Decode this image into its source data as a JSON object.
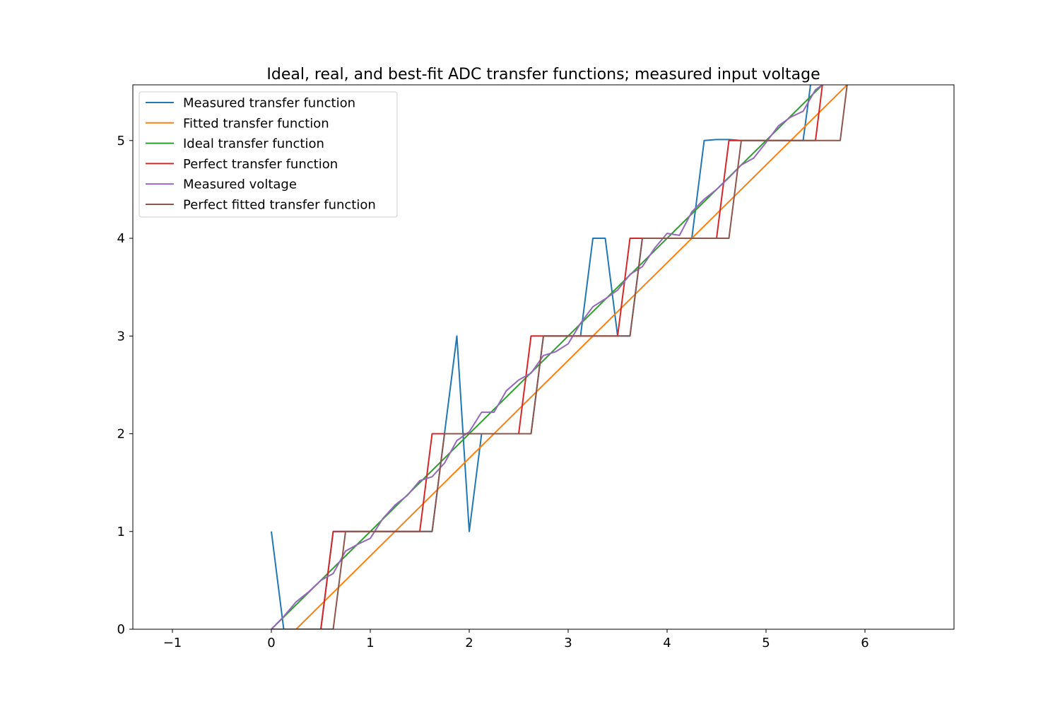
{
  "chart_data": {
    "type": "line",
    "title": "Ideal, real, and best-fit ADC transfer functions; measured input voltage",
    "xlabel": "",
    "ylabel": "",
    "xlim": [
      -1.4,
      6.9
    ],
    "ylim": [
      0,
      5.57
    ],
    "xticks": [
      -1,
      0,
      1,
      2,
      3,
      4,
      5,
      6
    ],
    "xtick_labels": [
      "−1",
      "0",
      "1",
      "2",
      "3",
      "4",
      "5",
      "6"
    ],
    "yticks": [
      0,
      1,
      2,
      3,
      4,
      5
    ],
    "ytick_labels": [
      "0",
      "1",
      "2",
      "3",
      "4",
      "5"
    ],
    "grid": false,
    "legend_position": "top-left",
    "series": [
      {
        "name": "Measured transfer function",
        "color": "#1f77b4",
        "points": [
          [
            0,
            1
          ],
          [
            0.125,
            0
          ],
          [
            0.25,
            0
          ],
          [
            0.5,
            0
          ],
          [
            0.625,
            1
          ],
          [
            0.75,
            1
          ],
          [
            1.0,
            1
          ],
          [
            1.5,
            1
          ],
          [
            1.625,
            1
          ],
          [
            1.75,
            2
          ],
          [
            1.875,
            3
          ],
          [
            2.0,
            1
          ],
          [
            2.125,
            2
          ],
          [
            2.25,
            2
          ],
          [
            2.5,
            2
          ],
          [
            2.625,
            2
          ],
          [
            2.75,
            3
          ],
          [
            3.0,
            3
          ],
          [
            3.125,
            3
          ],
          [
            3.25,
            4
          ],
          [
            3.375,
            4
          ],
          [
            3.5,
            3
          ],
          [
            3.625,
            3
          ],
          [
            3.75,
            4
          ],
          [
            4.0,
            4
          ],
          [
            4.125,
            4
          ],
          [
            4.25,
            4
          ],
          [
            4.375,
            5
          ],
          [
            4.5,
            5.01
          ],
          [
            4.625,
            5.01
          ],
          [
            4.75,
            5
          ],
          [
            5.0,
            5
          ],
          [
            5.25,
            5
          ],
          [
            5.375,
            5
          ],
          [
            5.45,
            5.57
          ]
        ]
      },
      {
        "name": "Fitted transfer function",
        "color": "#ff7f0e",
        "points": [
          [
            0.25,
            0
          ],
          [
            5.82,
            5.57
          ]
        ]
      },
      {
        "name": "Ideal transfer function",
        "color": "#2ca02c",
        "points": [
          [
            0,
            0
          ],
          [
            5.57,
            5.57
          ]
        ]
      },
      {
        "name": "Perfect transfer function",
        "color": "#d62728",
        "points": [
          [
            0,
            0
          ],
          [
            0.5,
            0
          ],
          [
            0.625,
            1
          ],
          [
            1.5,
            1
          ],
          [
            1.625,
            2
          ],
          [
            2.5,
            2
          ],
          [
            2.625,
            3
          ],
          [
            3.5,
            3
          ],
          [
            3.625,
            4
          ],
          [
            4.5,
            4
          ],
          [
            4.625,
            5
          ],
          [
            5.5,
            5
          ],
          [
            5.57,
            5.57
          ]
        ]
      },
      {
        "name": "Measured voltage",
        "color": "#9467bd",
        "points": [
          [
            0,
            0
          ],
          [
            0.125,
            0.13
          ],
          [
            0.25,
            0.28
          ],
          [
            0.375,
            0.38
          ],
          [
            0.5,
            0.5
          ],
          [
            0.625,
            0.57
          ],
          [
            0.75,
            0.8
          ],
          [
            0.875,
            0.87
          ],
          [
            1.0,
            0.93
          ],
          [
            1.125,
            1.13
          ],
          [
            1.25,
            1.27
          ],
          [
            1.375,
            1.37
          ],
          [
            1.5,
            1.52
          ],
          [
            1.625,
            1.56
          ],
          [
            1.75,
            1.7
          ],
          [
            1.875,
            1.93
          ],
          [
            2.0,
            2.02
          ],
          [
            2.125,
            2.22
          ],
          [
            2.25,
            2.22
          ],
          [
            2.375,
            2.44
          ],
          [
            2.5,
            2.55
          ],
          [
            2.625,
            2.62
          ],
          [
            2.75,
            2.8
          ],
          [
            2.875,
            2.84
          ],
          [
            3.0,
            2.92
          ],
          [
            3.125,
            3.13
          ],
          [
            3.25,
            3.3
          ],
          [
            3.375,
            3.38
          ],
          [
            3.5,
            3.47
          ],
          [
            3.625,
            3.63
          ],
          [
            3.75,
            3.71
          ],
          [
            3.875,
            3.9
          ],
          [
            4.0,
            4.05
          ],
          [
            4.125,
            4.03
          ],
          [
            4.25,
            4.27
          ],
          [
            4.375,
            4.4
          ],
          [
            4.5,
            4.5
          ],
          [
            4.625,
            4.62
          ],
          [
            4.75,
            4.75
          ],
          [
            4.875,
            4.82
          ],
          [
            5.0,
            4.98
          ],
          [
            5.125,
            5.15
          ],
          [
            5.25,
            5.24
          ],
          [
            5.375,
            5.3
          ],
          [
            5.5,
            5.52
          ],
          [
            5.57,
            5.57
          ]
        ]
      },
      {
        "name": "Perfect fitted transfer function",
        "color": "#8c564b",
        "points": [
          [
            0,
            0
          ],
          [
            0.625,
            0
          ],
          [
            0.75,
            1
          ],
          [
            1.625,
            1
          ],
          [
            1.75,
            2
          ],
          [
            2.625,
            2
          ],
          [
            2.75,
            3
          ],
          [
            3.625,
            3
          ],
          [
            3.75,
            4
          ],
          [
            4.625,
            4
          ],
          [
            4.75,
            5
          ],
          [
            5.75,
            5
          ],
          [
            5.82,
            5.57
          ]
        ]
      }
    ]
  }
}
